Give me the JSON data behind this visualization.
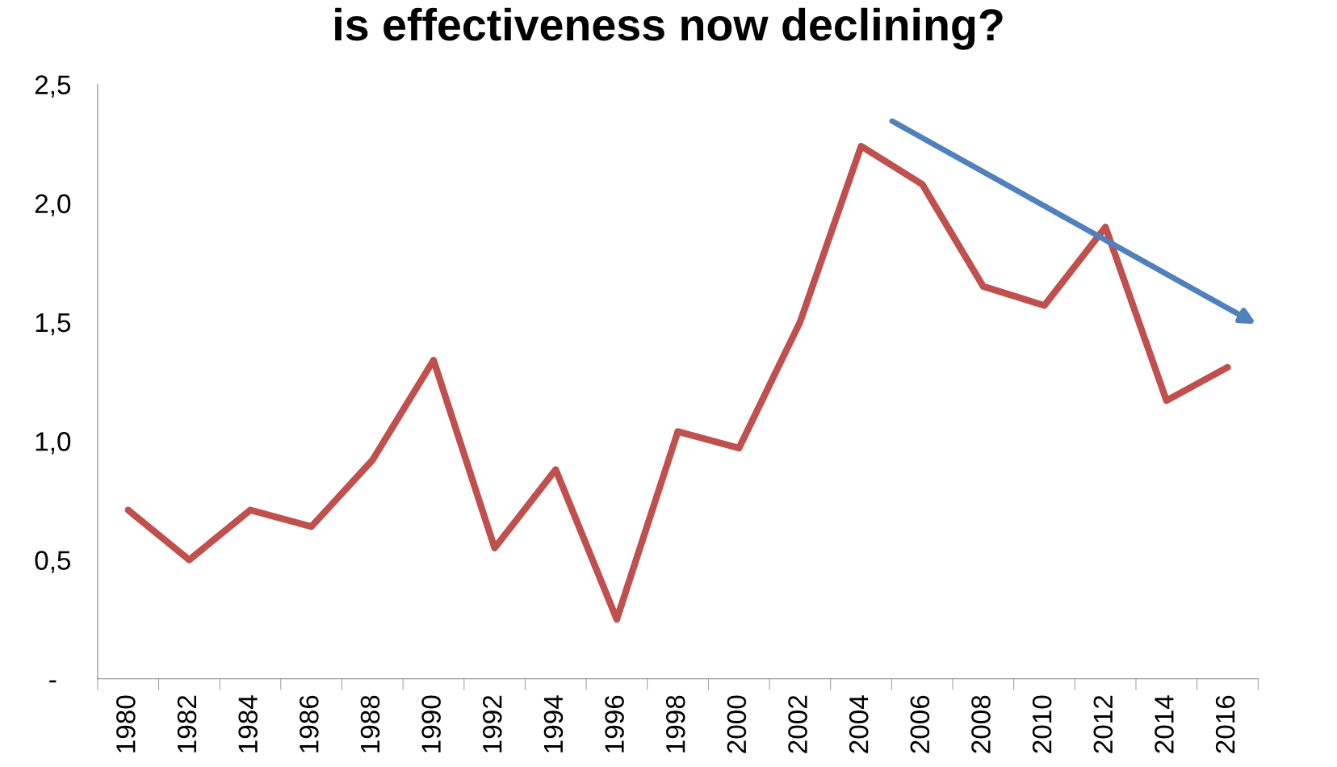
{
  "chart_data": {
    "type": "line",
    "title": "is effectiveness now declining?",
    "categories": [
      "1980",
      "1982",
      "1984",
      "1986",
      "1988",
      "1990",
      "1992",
      "1994",
      "1996",
      "1998",
      "2000",
      "2002",
      "2004",
      "2006",
      "2008",
      "2010",
      "2012",
      "2014",
      "2016"
    ],
    "series": [
      {
        "color": "#c0504d",
        "values": [
          0.71,
          0.5,
          0.71,
          0.64,
          0.92,
          1.34,
          0.55,
          0.88,
          0.25,
          1.04,
          0.97,
          1.5,
          2.24,
          2.08,
          1.65,
          1.57,
          1.9,
          1.17,
          1.31
        ]
      }
    ],
    "ylim": [
      0,
      2.5
    ],
    "yticks": [
      {
        "value": 0,
        "label": "-"
      },
      {
        "value": 0.5,
        "label": "0,5"
      },
      {
        "value": 1.0,
        "label": "1,0"
      },
      {
        "value": 1.5,
        "label": "1,5"
      },
      {
        "value": 2.0,
        "label": "2,0"
      },
      {
        "value": 2.5,
        "label": "2,5"
      }
    ],
    "grid": false,
    "marker": "none",
    "line_style": "solid",
    "legend": false
  }
}
